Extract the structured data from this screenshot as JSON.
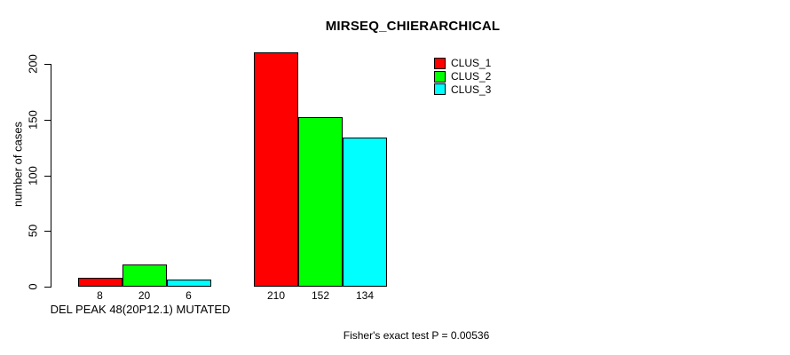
{
  "chart_data": {
    "type": "bar",
    "title": "MIRSEQ_CHIERARCHICAL",
    "ylabel": "number of cases",
    "xlabel": "DEL PEAK 48(20P12.1) MUTATED",
    "footer": "Fisher's exact test P = 0.00536",
    "yticks": [
      0,
      50,
      100,
      150,
      200
    ],
    "ylim": [
      0,
      210
    ],
    "grid": false,
    "legend_position": "top-right",
    "series": [
      {
        "name": "CLUS_1",
        "color": "#ff0000"
      },
      {
        "name": "CLUS_2",
        "color": "#00ff00"
      },
      {
        "name": "CLUS_3",
        "color": "#00ffff"
      }
    ],
    "groups": [
      {
        "label": "DEL PEAK 48(20P12.1) MUTATED",
        "values": [
          8,
          20,
          6
        ]
      },
      {
        "label": "",
        "values": [
          210,
          152,
          134
        ]
      }
    ]
  }
}
